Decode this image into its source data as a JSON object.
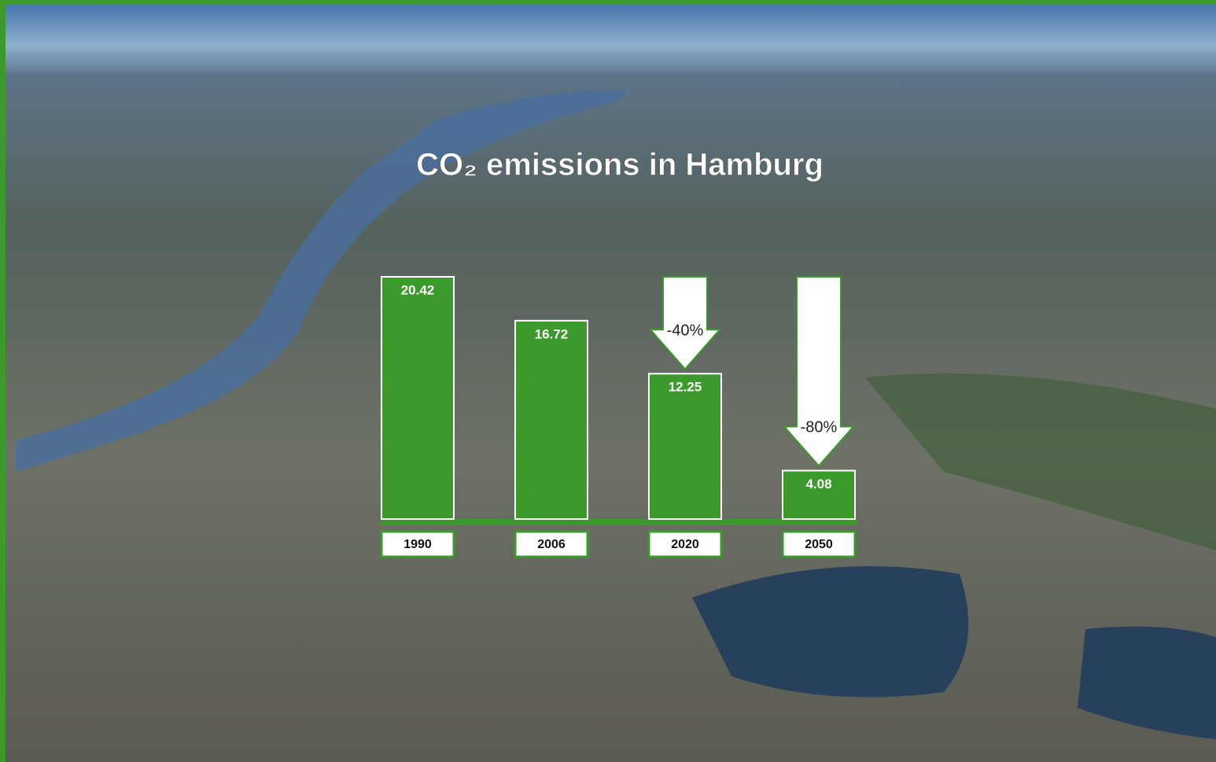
{
  "chart_data": {
    "type": "bar",
    "title": "CO₂ emissions in Hamburg",
    "categories": [
      "1990",
      "2006",
      "2020",
      "2050"
    ],
    "values": [
      20.42,
      16.72,
      12.25,
      4.08
    ],
    "color": "#3c9a2c",
    "annotations": [
      "-40%",
      "-80%"
    ]
  }
}
